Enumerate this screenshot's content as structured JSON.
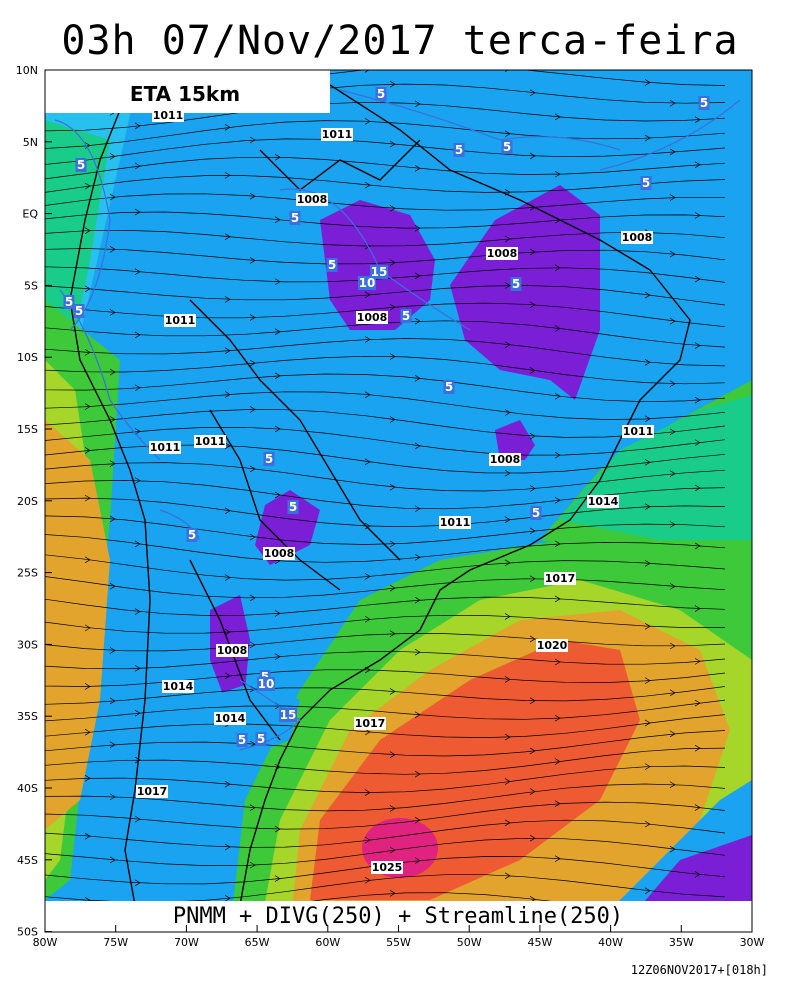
{
  "title": "03h 07/Nov/2017 terca-feira",
  "model_label": "ETA 15km",
  "bottom_label": "PNMM + DIVG(250) + Streamline(250)",
  "footer": "12Z06NOV2017+[018h]",
  "colors": {
    "deep_purple": "#7a1fd6",
    "blue": "#1aa3f0",
    "light_blue": "#27c0ef",
    "teal_green": "#19cc8a",
    "green": "#3ec93a",
    "yellow_green": "#a6d62a",
    "orange": "#e3a42e",
    "red_orange": "#ee5a31",
    "magenta": "#e0237f",
    "divergence_contour": "#3a6fe0",
    "land_border": "#000000"
  },
  "axes": {
    "lon_labels": [
      "80W",
      "75W",
      "70W",
      "65W",
      "60W",
      "55W",
      "50W",
      "45W",
      "40W",
      "35W",
      "30W"
    ],
    "lat_labels": [
      "10N",
      "5N",
      "EQ",
      "5S",
      "10S",
      "15S",
      "20S",
      "25S",
      "30S",
      "35S",
      "40S",
      "45S",
      "50S"
    ]
  },
  "isobar_labels": [
    "1011",
    "1011",
    "1008",
    "1008",
    "1008",
    "1008",
    "1011",
    "1011",
    "1011",
    "1011",
    "1008",
    "1014",
    "1011",
    "1008",
    "1017",
    "1008",
    "1020",
    "1014",
    "1014",
    "1017",
    "1017",
    "1025"
  ],
  "divergence_labels": [
    "5",
    "5",
    "5",
    "5",
    "5",
    "5",
    "5",
    "5",
    "5",
    "15",
    "10",
    "5",
    "5",
    "5",
    "5",
    "5",
    "5",
    "5",
    "5",
    "5",
    "10",
    "15",
    "5",
    "5"
  ]
}
